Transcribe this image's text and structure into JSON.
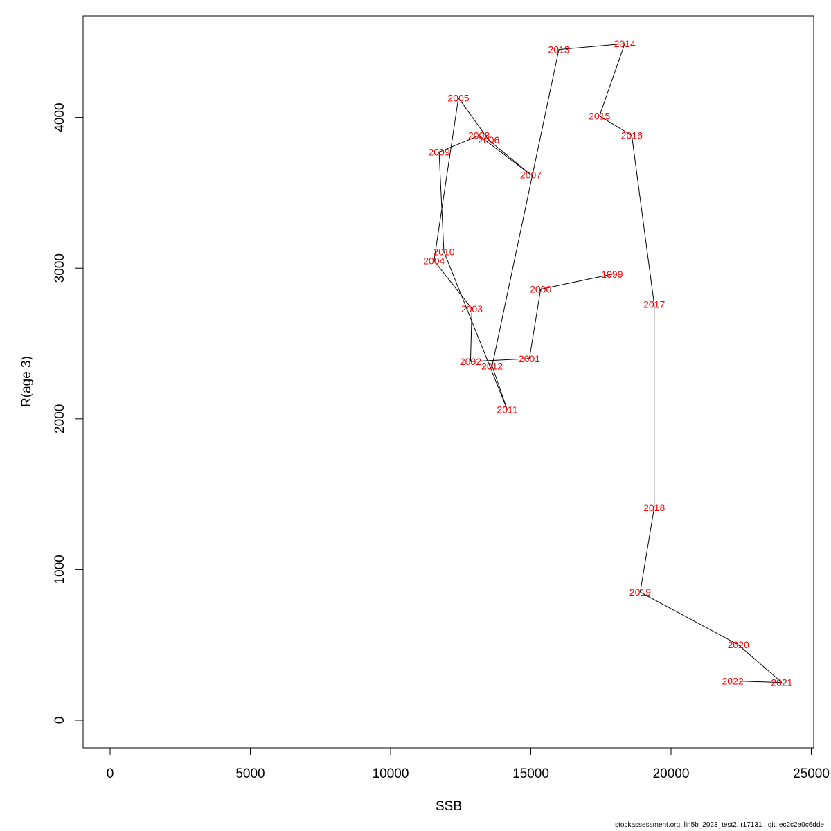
{
  "chart_data": {
    "type": "line",
    "title": "",
    "xlabel": "SSB",
    "ylabel": "R(age 3)",
    "xlim": [
      -1000,
      25000
    ],
    "ylim": [
      -180,
      4670
    ],
    "xticks": [
      0,
      5000,
      10000,
      15000,
      20000,
      25000
    ],
    "yticks": [
      0,
      1000,
      2000,
      3000,
      4000
    ],
    "xtick_labels": [
      "0",
      "5000",
      "10000",
      "15000",
      "20000",
      "25000"
    ],
    "ytick_labels": [
      "0",
      "1000",
      "2000",
      "3000",
      "4000"
    ],
    "grid": false,
    "line_color": "#000000",
    "label_color": "#ff0000",
    "points": [
      {
        "label": "1999",
        "x": 17900,
        "y": 2960
      },
      {
        "label": "2000",
        "x": 15350,
        "y": 2860
      },
      {
        "label": "2001",
        "x": 14950,
        "y": 2400
      },
      {
        "label": "2002",
        "x": 12850,
        "y": 2380
      },
      {
        "label": "2003",
        "x": 12900,
        "y": 2730
      },
      {
        "label": "2004",
        "x": 11550,
        "y": 3050
      },
      {
        "label": "2005",
        "x": 12420,
        "y": 4130
      },
      {
        "label": "2006",
        "x": 13500,
        "y": 3850
      },
      {
        "label": "2007",
        "x": 15000,
        "y": 3620
      },
      {
        "label": "2008",
        "x": 13150,
        "y": 3880
      },
      {
        "label": "2009",
        "x": 11730,
        "y": 3770
      },
      {
        "label": "2010",
        "x": 11900,
        "y": 3110
      },
      {
        "label": "2011",
        "x": 14160,
        "y": 2060
      },
      {
        "label": "2012",
        "x": 13620,
        "y": 2350
      },
      {
        "label": "2013",
        "x": 16000,
        "y": 4450
      },
      {
        "label": "2014",
        "x": 18350,
        "y": 4490
      },
      {
        "label": "2015",
        "x": 17450,
        "y": 4010
      },
      {
        "label": "2016",
        "x": 18600,
        "y": 3880
      },
      {
        "label": "2017",
        "x": 19400,
        "y": 2760
      },
      {
        "label": "2018",
        "x": 19400,
        "y": 1410
      },
      {
        "label": "2019",
        "x": 18900,
        "y": 850
      },
      {
        "label": "2020",
        "x": 22400,
        "y": 500
      },
      {
        "label": "2021",
        "x": 23950,
        "y": 250
      },
      {
        "label": "2022",
        "x": 22200,
        "y": 260
      }
    ]
  },
  "footer_text": "stockassessment.org, lin5b_2023_test2, r17131 , git: ec2c2a0c6dde"
}
